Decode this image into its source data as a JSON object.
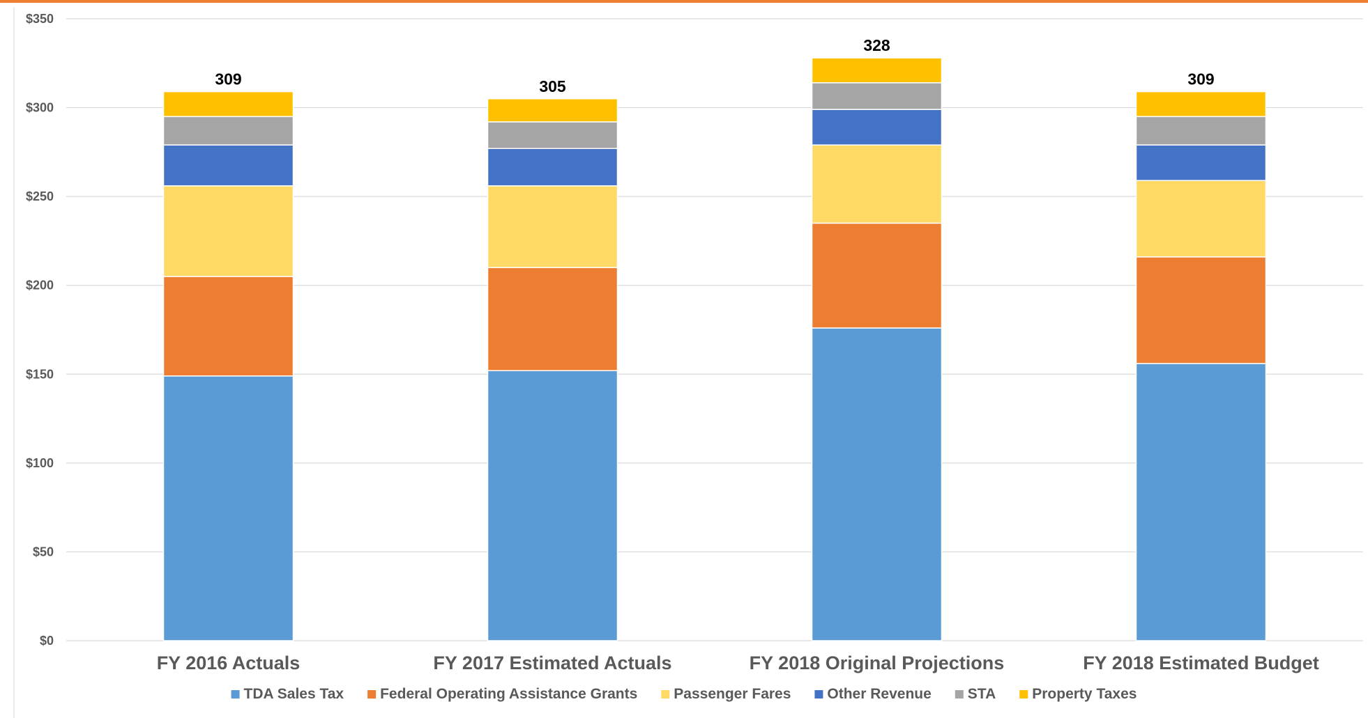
{
  "chart_data": {
    "type": "bar",
    "stacked": true,
    "categories": [
      "FY 2016 Actuals",
      "FY 2017 Estimated Actuals",
      "FY 2018 Original Projections",
      "FY 2018 Estimated Budget"
    ],
    "series": [
      {
        "name": "TDA Sales Tax",
        "color": "#5b9bd5",
        "values": [
          149,
          152,
          176,
          156
        ]
      },
      {
        "name": "Federal Operating Assistance Grants",
        "color": "#ed7d31",
        "values": [
          56,
          58,
          59,
          60
        ]
      },
      {
        "name": "Passenger Fares",
        "color": "#ffd966",
        "values": [
          51,
          46,
          44,
          43
        ]
      },
      {
        "name": "Other Revenue",
        "color": "#4472c4",
        "values": [
          23,
          21,
          20,
          20
        ]
      },
      {
        "name": "STA",
        "color": "#a5a5a5",
        "values": [
          16,
          15,
          15,
          16
        ]
      },
      {
        "name": "Property Taxes",
        "color": "#ffc000",
        "values": [
          14,
          13,
          14,
          14
        ]
      }
    ],
    "totals": [
      "309",
      "305",
      "328",
      "309"
    ],
    "ylim": [
      0,
      350
    ],
    "yticks": [
      0,
      50,
      100,
      150,
      200,
      250,
      300,
      350
    ],
    "ytick_labels": [
      "$0",
      "$50",
      "$100",
      "$150",
      "$200",
      "$250",
      "$300",
      "$350"
    ],
    "grid": true,
    "legend_position": "bottom"
  }
}
